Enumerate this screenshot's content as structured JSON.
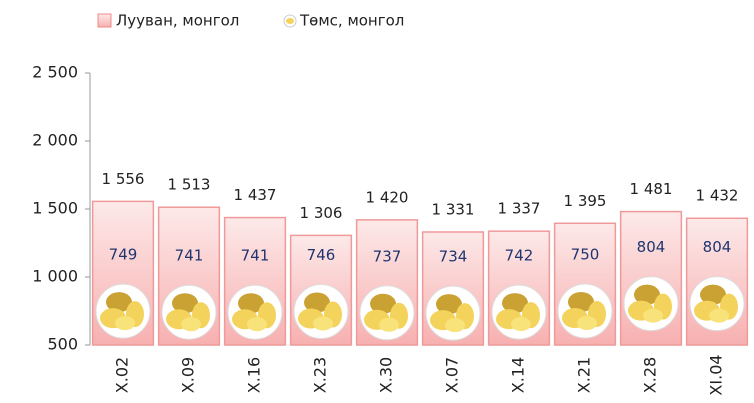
{
  "chart_data": {
    "type": "bar",
    "categories": [
      "X.02",
      "X.09",
      "X.16",
      "X.23",
      "X.30",
      "X.07",
      "X.14",
      "X.21",
      "X.28",
      "XI.04"
    ],
    "series": [
      {
        "name": "Лууван, монгол",
        "color": "#f7b8b8",
        "values": [
          1556,
          1513,
          1437,
          1306,
          1420,
          1331,
          1337,
          1395,
          1481,
          1432
        ],
        "value_labels": [
          "1 556",
          "1 513",
          "1 437",
          "1 306",
          "1 420",
          "1 331",
          "1 337",
          "1 395",
          "1 481",
          "1 432"
        ]
      },
      {
        "name": "Төмс, монгол",
        "color": "#f3d35c",
        "values": [
          749,
          741,
          741,
          746,
          737,
          734,
          742,
          750,
          804,
          804
        ]
      }
    ],
    "ylim": [
      500,
      2500
    ],
    "yticks": [
      {
        "value": 500,
        "label": "500"
      },
      {
        "value": 1000,
        "label": "1 000"
      },
      {
        "value": 1500,
        "label": "1 500"
      },
      {
        "value": 2000,
        "label": "2 000"
      },
      {
        "value": 2500,
        "label": "2 500"
      }
    ],
    "grid": false
  }
}
